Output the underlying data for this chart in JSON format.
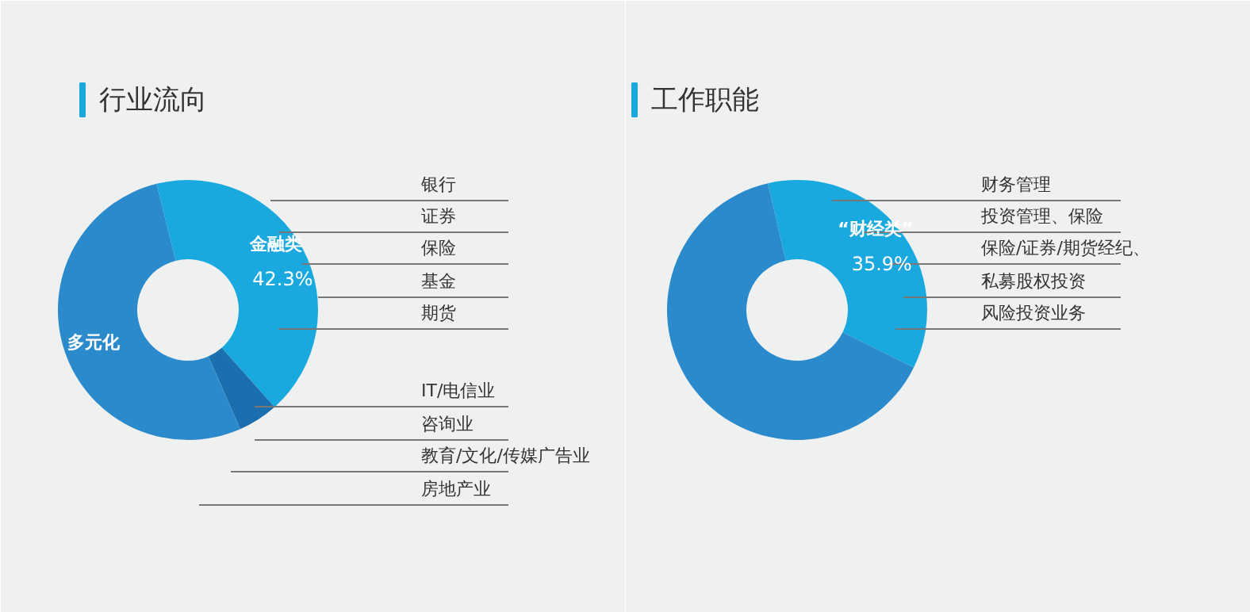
{
  "chart_data": [
    {
      "type": "donut",
      "title": "行业流向",
      "categories": [
        "金融类",
        null,
        "多元化"
      ],
      "values": [
        42.3,
        5,
        52.7
      ],
      "colors": [
        "#1aa9df",
        "#1b6fae",
        "#2a8acb"
      ],
      "value_labels": [
        "42.3%",
        null,
        null
      ],
      "annotations": [
        "银行",
        "证券",
        "保险",
        "基金",
        "期货",
        "IT/电信业",
        "咨询业",
        "教育/文化/传媒广告业",
        "房地产业"
      ]
    },
    {
      "type": "donut",
      "title": "工作职能",
      "categories": [
        "“财经类”",
        null
      ],
      "values": [
        35.9,
        64.1
      ],
      "colors": [
        "#1aa9df",
        "#2a8acb"
      ],
      "value_labels": [
        "35.9%",
        null
      ],
      "annotations": [
        "财务管理",
        "投资管理、保险",
        "保险/证券/期货经纪、",
        "私募股权投资",
        "风险投资业务"
      ]
    }
  ]
}
